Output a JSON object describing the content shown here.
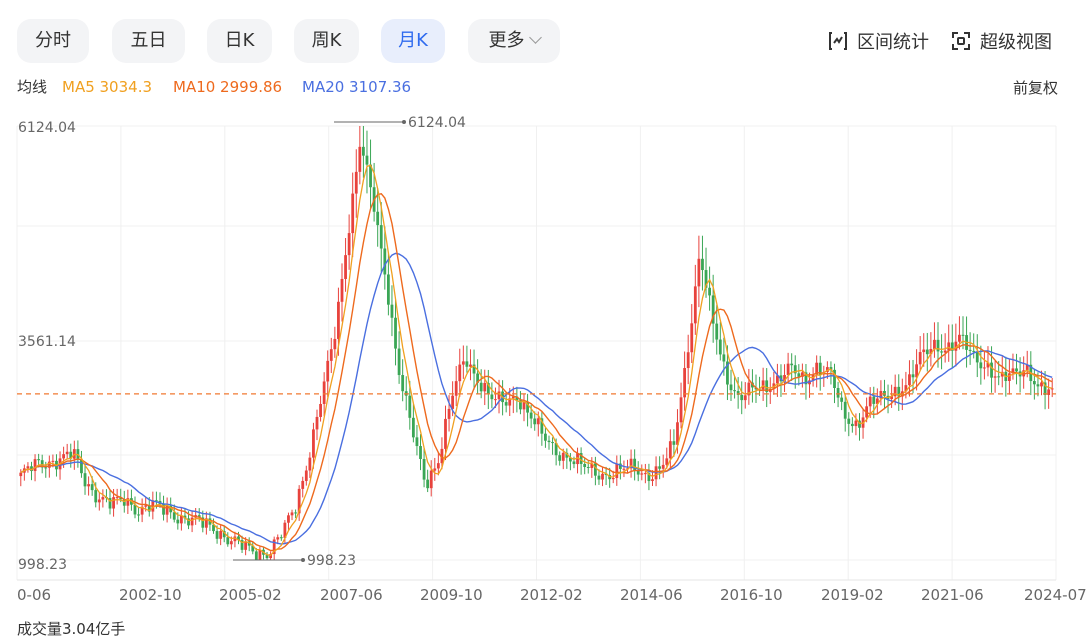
{
  "tabs": [
    {
      "label": "分时",
      "active": false
    },
    {
      "label": "五日",
      "active": false
    },
    {
      "label": "日K",
      "active": false
    },
    {
      "label": "周K",
      "active": false
    },
    {
      "label": "月K",
      "active": true
    },
    {
      "label": "更多",
      "active": false
    }
  ],
  "tools": {
    "range_stats": "区间统计",
    "super_view": "超级视图"
  },
  "legend": {
    "label": "均线",
    "ma5": "MA5 3034.3",
    "ma10": "MA10 2999.86",
    "ma20": "MA20 3107.36",
    "adjust": "前复权"
  },
  "colors": {
    "up": "#e8423c",
    "down": "#3aa655",
    "ma5": "#f0a020",
    "ma10": "#ee6a1e",
    "ma20": "#4a6fe0",
    "accent": "#2f6bef",
    "last_price_line": "#f07830"
  },
  "chart_data": {
    "type": "candlestick",
    "y_labels": [
      "6124.04",
      "3561.14",
      "998.23"
    ],
    "high_marker": "6124.04",
    "low_marker": "998.23",
    "x_labels": [
      "0-06",
      "2002-10",
      "2005-02",
      "2007-06",
      "2009-10",
      "2012-02",
      "2014-06",
      "2016-10",
      "2019-02",
      "2021-06",
      "2024-07"
    ],
    "ylim": [
      998.23,
      6124.04
    ],
    "last_price": 2960,
    "monthly_close_approx": [
      2000,
      2100,
      2150,
      2200,
      2250,
      1900,
      1750,
      1650,
      1700,
      1600,
      1650,
      1580,
      1520,
      1480,
      1420,
      1350,
      1250,
      1150,
      1080,
      1100,
      1300,
      1600,
      2200,
      2900,
      3600,
      4800,
      5950,
      5200,
      4300,
      3200,
      2500,
      1900,
      2200,
      2900,
      3400,
      3150,
      2900,
      2850,
      2950,
      2700,
      2450,
      2300,
      2200,
      2100,
      2050,
      2000,
      2050,
      2100,
      2000,
      2050,
      2350,
      3400,
      4600,
      3800,
      3200,
      2900,
      3000,
      3050,
      3150,
      3250,
      3100,
      3300,
      3200,
      2700,
      2600,
      2850,
      2900,
      3000,
      3100,
      3400,
      3550,
      3500,
      3600,
      3400,
      3300,
      3100,
      3200,
      3300,
      3000,
      2960
    ]
  },
  "volume": {
    "label": "成交量3.04亿手"
  }
}
